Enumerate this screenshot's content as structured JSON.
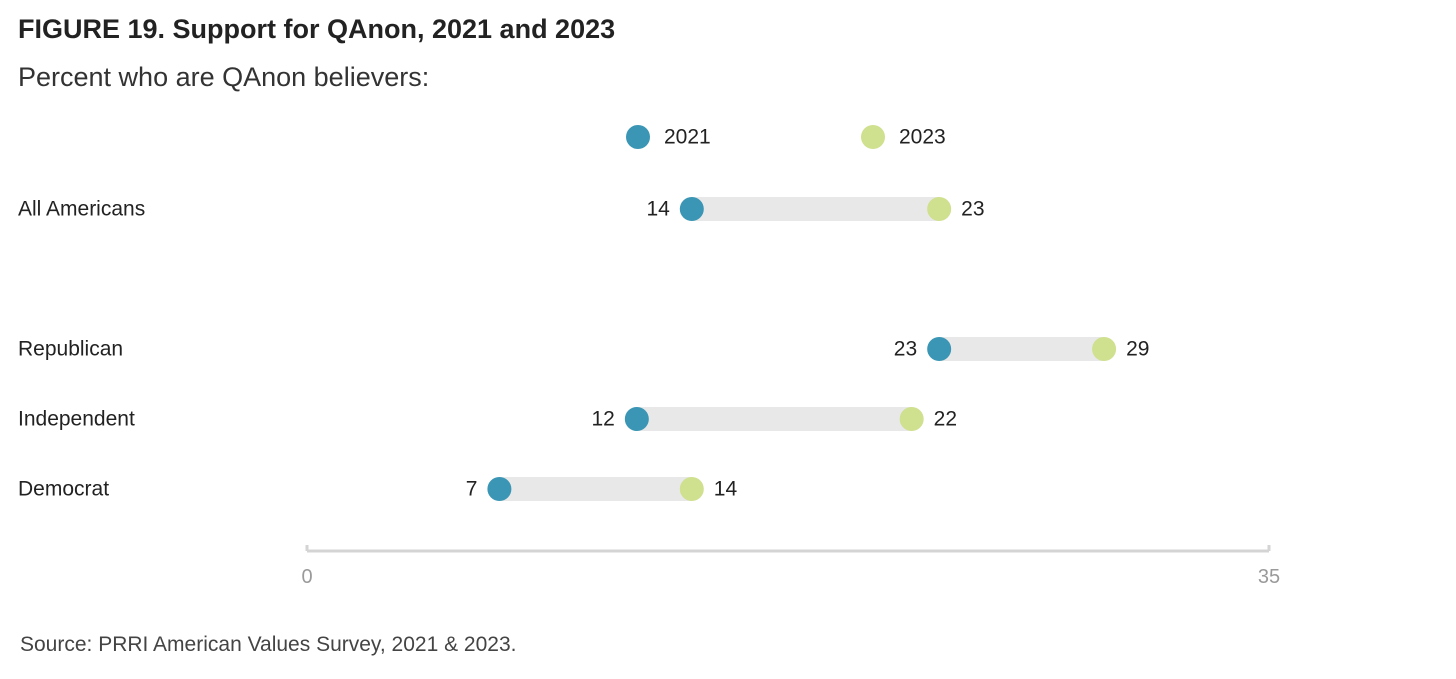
{
  "figure": {
    "title": "FIGURE 19.  Support for QAnon, 2021 and 2023",
    "subtitle": "Percent who are QAnon believers:",
    "source": "Source: PRRI American Values Survey, 2021 & 2023."
  },
  "colors": {
    "series_2021": "#3a96b4",
    "series_2023": "#cfe08e",
    "connector": "#e8e8e8",
    "axis": "#d4d4d4",
    "tick_label": "#9a9a9a",
    "text": "#222222"
  },
  "chart_data": {
    "type": "dumbbell",
    "categories": [
      "All Americans",
      "Republican",
      "Independent",
      "Democrat"
    ],
    "series": [
      {
        "name": "2021",
        "values": [
          14,
          23,
          12,
          7
        ]
      },
      {
        "name": "2023",
        "values": [
          23,
          29,
          22,
          14
        ]
      }
    ],
    "x_ticks": [
      "0",
      "35"
    ],
    "xlim": [
      0,
      35
    ],
    "legend_position": "top",
    "grid": false
  }
}
